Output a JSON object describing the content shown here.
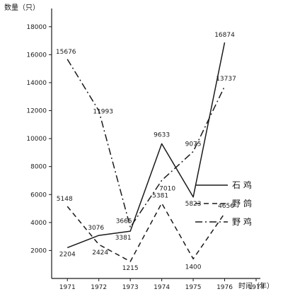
{
  "chart_data": {
    "type": "line",
    "ylabel": "数量（只）",
    "xlabel": "时间（年）",
    "ylim": [
      0,
      19000
    ],
    "yticks": [
      2000,
      4000,
      6000,
      8000,
      10000,
      12000,
      14000,
      16000,
      18000
    ],
    "xticks": [
      1971,
      1972,
      1973,
      1974,
      1975,
      1976,
      1977
    ],
    "grid": false,
    "legend_position": "right",
    "series": [
      {
        "name": "石 鸡",
        "style": "solid",
        "x": [
          1971,
          1972,
          1973,
          1974,
          1975,
          1976
        ],
        "values": [
          2204,
          3076,
          3381,
          9633,
          5823,
          16874
        ],
        "labels": [
          "2204",
          "3076",
          "3381",
          "9633",
          "5823",
          "16874"
        ]
      },
      {
        "name": "野 鸽",
        "style": "dashed",
        "x": [
          1971,
          1972,
          1973,
          1974,
          1975,
          1976
        ],
        "values": [
          5148,
          2424,
          1215,
          5381,
          1400,
          4656
        ],
        "labels": [
          "5148",
          "2424",
          "1215",
          "5381",
          "1400",
          "4656"
        ]
      },
      {
        "name": "野 鸡",
        "style": "dashdot",
        "x": [
          1971,
          1972,
          1973,
          1974,
          1975,
          1976
        ],
        "values": [
          15676,
          11993,
          3665,
          7010,
          9075,
          13737
        ],
        "labels": [
          "15676",
          "11993",
          "3665",
          "7010",
          "9075",
          "13737"
        ]
      }
    ]
  },
  "colors": {
    "line": "#1a1a1a",
    "background": "#ffffff"
  }
}
